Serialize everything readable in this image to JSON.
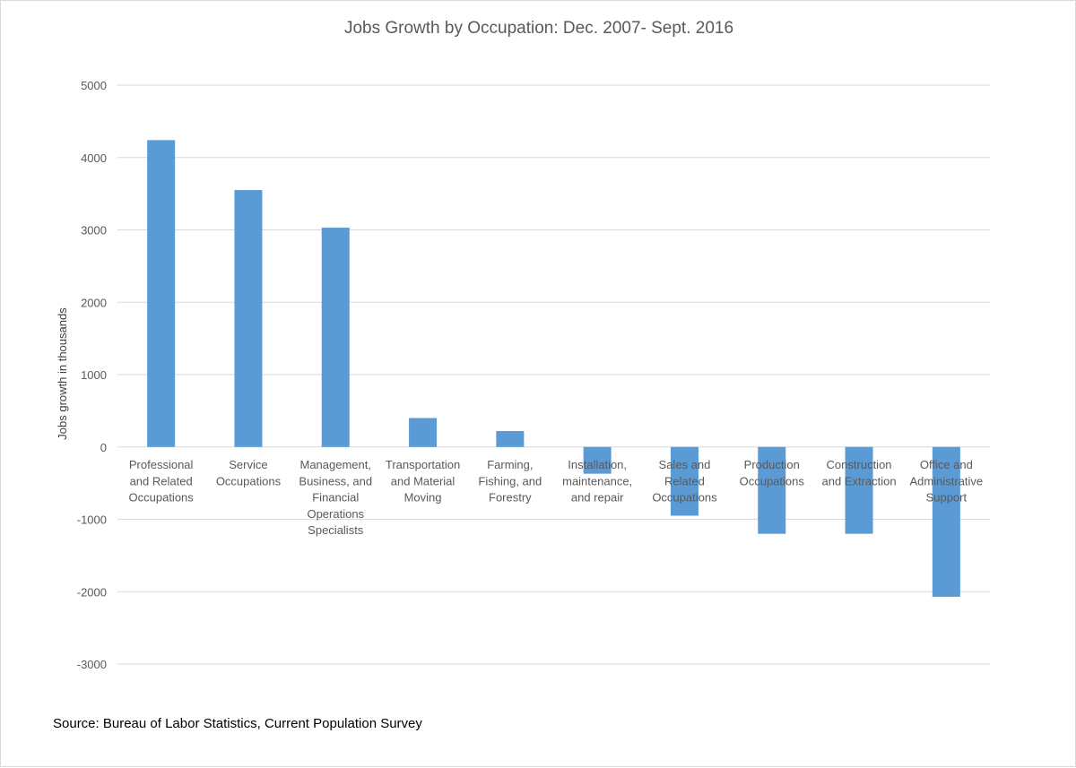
{
  "chart_data": {
    "type": "bar",
    "title": "Jobs Growth by Occupation: Dec. 2007- Sept. 2016",
    "xlabel": "",
    "ylabel": "Jobs growth in thousands",
    "ylim": [
      -3000,
      5000
    ],
    "yticks": [
      "5000",
      "4000",
      "3000",
      "2000",
      "1000",
      "0",
      "-1000",
      "-2000",
      "-3000"
    ],
    "grid": true,
    "legend": "none",
    "bar_color": "#5b9bd5",
    "categories": [
      [
        "Professional",
        "and Related",
        "Occupations"
      ],
      [
        "Service",
        "Occupations"
      ],
      [
        "Management,",
        "Business, and",
        "Financial",
        "Operations",
        "Specialists"
      ],
      [
        "Transportation",
        "and Material",
        "Moving"
      ],
      [
        "Farming,",
        "Fishing, and",
        "Forestry"
      ],
      [
        "Installation,",
        "maintenance,",
        "and repair"
      ],
      [
        "Sales and",
        "Related",
        "Occupations"
      ],
      [
        "Production",
        "Occupations"
      ],
      [
        "Construction",
        "and Extraction"
      ],
      [
        "Office and",
        "Administrative",
        "Support"
      ]
    ],
    "values": [
      4240,
      3550,
      3030,
      400,
      220,
      -370,
      -950,
      -1200,
      -1200,
      -2070
    ]
  },
  "source_note": "Source: Bureau of Labor Statistics, Current Population Survey"
}
